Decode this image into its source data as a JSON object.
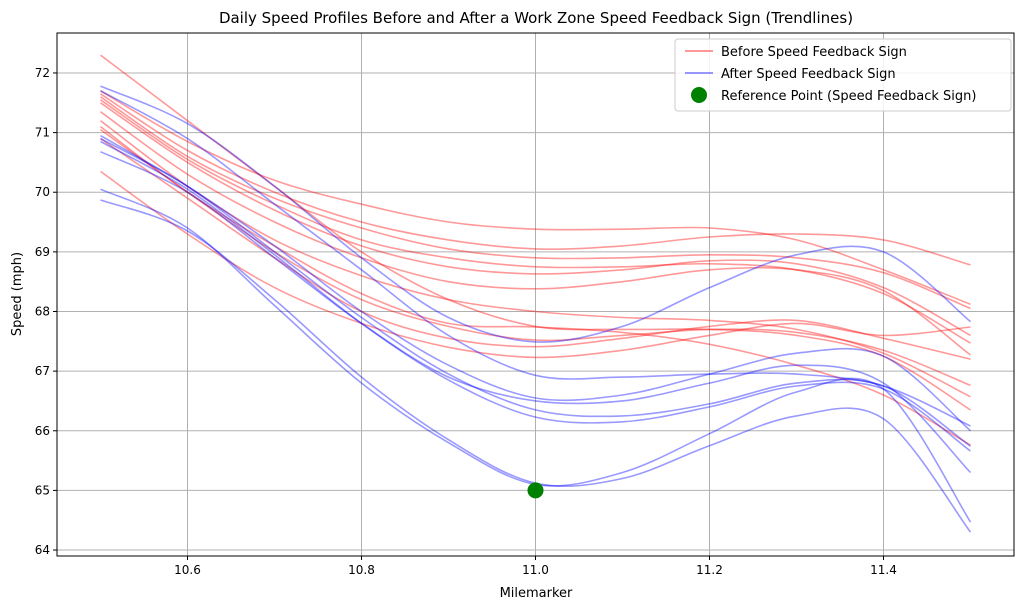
{
  "chart_data": {
    "type": "line",
    "title": "Daily Speed Profiles Before and After a Work Zone Speed Feedback Sign (Trendlines)",
    "xlabel": "Milemarker",
    "ylabel": "Speed (mph)",
    "xlim": [
      10.45,
      11.55
    ],
    "ylim": [
      63.9,
      72.67
    ],
    "xticks": [
      "10.6",
      "10.8",
      "11.0",
      "11.2",
      "11.4"
    ],
    "yticks": [
      "64",
      "65",
      "66",
      "67",
      "68",
      "69",
      "70",
      "71",
      "72"
    ],
    "grid": true,
    "legend_position": "top-right",
    "x": [
      10.5,
      10.6,
      10.7,
      10.8,
      10.9,
      11.0,
      11.1,
      11.2,
      11.3,
      11.4,
      11.5
    ],
    "groups": [
      {
        "name": "Before Speed Feedback Sign",
        "color": "#ff0000",
        "lines": [
          [
            72.3,
            71.2,
            70.1,
            69.0,
            68.2,
            67.75,
            67.7,
            67.7,
            67.6,
            67.25,
            66.35
          ],
          [
            71.7,
            70.85,
            70.2,
            69.8,
            69.5,
            69.38,
            69.38,
            69.4,
            69.2,
            68.7,
            68.12
          ],
          [
            71.65,
            70.7,
            70.0,
            69.5,
            69.2,
            69.05,
            69.1,
            69.25,
            69.3,
            69.2,
            68.78
          ],
          [
            71.6,
            70.6,
            69.9,
            69.4,
            69.05,
            68.9,
            68.9,
            68.95,
            68.9,
            68.65,
            68.05
          ],
          [
            71.55,
            70.55,
            69.8,
            69.2,
            68.9,
            68.75,
            68.75,
            68.8,
            68.7,
            68.3,
            67.47
          ],
          [
            71.5,
            70.5,
            69.7,
            69.1,
            68.75,
            68.63,
            68.7,
            68.85,
            68.8,
            68.4,
            67.6
          ],
          [
            71.35,
            70.3,
            69.5,
            68.9,
            68.5,
            68.38,
            68.5,
            68.7,
            68.7,
            68.35,
            67.27
          ],
          [
            71.2,
            70.1,
            69.2,
            68.6,
            68.2,
            68.0,
            67.9,
            67.85,
            67.7,
            67.3,
            66.57
          ],
          [
            71.05,
            70.0,
            69.0,
            68.2,
            67.75,
            67.52,
            67.6,
            67.7,
            67.65,
            67.35,
            66.76
          ],
          [
            70.9,
            69.9,
            68.9,
            68.0,
            67.55,
            67.41,
            67.55,
            67.75,
            67.85,
            67.55,
            67.2
          ],
          [
            70.35,
            69.3,
            68.4,
            67.8,
            67.4,
            67.23,
            67.35,
            67.6,
            67.8,
            67.6,
            67.74
          ],
          [
            71.1,
            70.0,
            69.1,
            68.3,
            67.8,
            67.74,
            67.65,
            67.45,
            67.1,
            66.6,
            65.76
          ]
        ]
      },
      {
        "name": "After Speed Feedback Sign",
        "color": "#0000ff",
        "lines": [
          [
            71.78,
            71.15,
            70.1,
            68.9,
            67.9,
            67.49,
            67.75,
            68.4,
            68.95,
            69.0,
            67.83
          ],
          [
            71.7,
            70.9,
            69.8,
            68.7,
            67.6,
            66.93,
            66.9,
            66.95,
            66.95,
            66.75,
            66.08
          ],
          [
            70.95,
            70.1,
            69.1,
            68.0,
            67.1,
            66.55,
            66.6,
            66.95,
            67.3,
            67.25,
            66.0
          ],
          [
            70.9,
            70.1,
            69.0,
            67.9,
            66.95,
            66.35,
            66.25,
            66.45,
            66.8,
            66.75,
            65.74
          ],
          [
            70.85,
            70.05,
            68.95,
            67.8,
            66.85,
            66.23,
            66.15,
            66.4,
            66.75,
            66.7,
            65.66
          ],
          [
            70.68,
            70.0,
            68.9,
            67.8,
            66.9,
            66.5,
            66.5,
            66.8,
            67.1,
            66.8,
            65.3
          ],
          [
            70.05,
            69.4,
            68.1,
            66.8,
            65.8,
            65.1,
            65.3,
            65.95,
            66.65,
            66.7,
            64.47
          ],
          [
            69.87,
            69.35,
            68.2,
            66.9,
            65.85,
            65.12,
            65.2,
            65.75,
            66.25,
            66.2,
            64.3
          ]
        ]
      }
    ],
    "reference_point": {
      "name": "Reference Point (Speed Feedback Sign)",
      "x": 11.0,
      "y": 65.0,
      "color": "#008000"
    },
    "legend": [
      {
        "label": "Before Speed Feedback Sign",
        "kind": "line",
        "color": "#ff0000"
      },
      {
        "label": "After Speed Feedback Sign",
        "kind": "line",
        "color": "#0000ff"
      },
      {
        "label": "Reference Point (Speed Feedback Sign)",
        "kind": "marker",
        "color": "#008000"
      }
    ]
  }
}
